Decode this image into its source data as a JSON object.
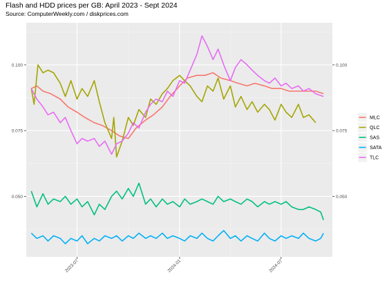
{
  "chart_data": {
    "type": "line",
    "title": "Flash and HDD prices per GB: April 2023 - Sept 2024",
    "subtitle": "Source: ComputerWeekly.com / diskprices.com",
    "xlabel": "",
    "ylabel": "",
    "xlim": [
      "2023-04-01",
      "2024-10-01"
    ],
    "ylim": [
      0.027,
      0.116
    ],
    "grid": true,
    "legend_position": "right",
    "x_ticks": [
      "2023-07",
      "2024-01",
      "2024-07"
    ],
    "y_ticks": [
      0.05,
      0.075,
      0.1
    ],
    "y_tick_labels": [
      "0.050",
      "0.075",
      "0.100"
    ],
    "series": [
      {
        "name": "MLC",
        "color": "#F8766D",
        "points": [
          [
            "2023-04-10",
            0.091
          ],
          [
            "2023-04-20",
            0.092
          ],
          [
            "2023-05-01",
            0.09
          ],
          [
            "2023-05-15",
            0.089
          ],
          [
            "2023-06-01",
            0.087
          ],
          [
            "2023-06-15",
            0.084
          ],
          [
            "2023-07-01",
            0.082
          ],
          [
            "2023-07-15",
            0.08
          ],
          [
            "2023-08-01",
            0.078
          ],
          [
            "2023-08-15",
            0.077
          ],
          [
            "2023-09-01",
            0.075
          ],
          [
            "2023-09-15",
            0.073
          ],
          [
            "2023-10-01",
            0.072
          ],
          [
            "2023-10-15",
            0.076
          ],
          [
            "2023-11-01",
            0.079
          ],
          [
            "2023-11-15",
            0.081
          ],
          [
            "2023-12-01",
            0.084
          ],
          [
            "2023-12-15",
            0.088
          ],
          [
            "2024-01-01",
            0.092
          ],
          [
            "2024-01-15",
            0.095
          ],
          [
            "2024-02-01",
            0.096
          ],
          [
            "2024-02-15",
            0.096
          ],
          [
            "2024-03-01",
            0.097
          ],
          [
            "2024-03-15",
            0.095
          ],
          [
            "2024-04-01",
            0.094
          ],
          [
            "2024-04-15",
            0.093
          ],
          [
            "2024-05-01",
            0.092
          ],
          [
            "2024-05-15",
            0.093
          ],
          [
            "2024-06-01",
            0.092
          ],
          [
            "2024-06-15",
            0.091
          ],
          [
            "2024-07-01",
            0.091
          ],
          [
            "2024-07-15",
            0.09
          ],
          [
            "2024-08-01",
            0.09
          ],
          [
            "2024-08-15",
            0.09
          ],
          [
            "2024-09-01",
            0.09
          ],
          [
            "2024-09-15",
            0.089
          ]
        ]
      },
      {
        "name": "QLC",
        "color": "#A3A500",
        "points": [
          [
            "2023-04-10",
            0.091
          ],
          [
            "2023-04-15",
            0.085
          ],
          [
            "2023-04-22",
            0.1
          ],
          [
            "2023-05-01",
            0.097
          ],
          [
            "2023-05-10",
            0.098
          ],
          [
            "2023-05-20",
            0.097
          ],
          [
            "2023-06-01",
            0.093
          ],
          [
            "2023-06-10",
            0.088
          ],
          [
            "2023-06-20",
            0.094
          ],
          [
            "2023-07-01",
            0.087
          ],
          [
            "2023-07-10",
            0.091
          ],
          [
            "2023-07-20",
            0.088
          ],
          [
            "2023-08-01",
            0.094
          ],
          [
            "2023-08-10",
            0.086
          ],
          [
            "2023-08-20",
            0.078
          ],
          [
            "2023-09-01",
            0.072
          ],
          [
            "2023-09-05",
            0.08
          ],
          [
            "2023-09-10",
            0.065
          ],
          [
            "2023-09-20",
            0.071
          ],
          [
            "2023-10-01",
            0.08
          ],
          [
            "2023-10-10",
            0.077
          ],
          [
            "2023-10-20",
            0.083
          ],
          [
            "2023-11-01",
            0.08
          ],
          [
            "2023-11-10",
            0.087
          ],
          [
            "2023-11-20",
            0.085
          ],
          [
            "2023-12-01",
            0.089
          ],
          [
            "2023-12-10",
            0.091
          ],
          [
            "2023-12-20",
            0.094
          ],
          [
            "2024-01-01",
            0.096
          ],
          [
            "2024-01-10",
            0.094
          ],
          [
            "2024-01-20",
            0.092
          ],
          [
            "2024-02-01",
            0.088
          ],
          [
            "2024-02-10",
            0.086
          ],
          [
            "2024-02-20",
            0.092
          ],
          [
            "2024-03-01",
            0.09
          ],
          [
            "2024-03-10",
            0.095
          ],
          [
            "2024-03-20",
            0.087
          ],
          [
            "2024-04-01",
            0.092
          ],
          [
            "2024-04-10",
            0.084
          ],
          [
            "2024-04-20",
            0.088
          ],
          [
            "2024-05-01",
            0.083
          ],
          [
            "2024-05-10",
            0.086
          ],
          [
            "2024-05-20",
            0.082
          ],
          [
            "2024-06-01",
            0.085
          ],
          [
            "2024-06-10",
            0.083
          ],
          [
            "2024-06-20",
            0.079
          ],
          [
            "2024-07-01",
            0.085
          ],
          [
            "2024-07-10",
            0.082
          ],
          [
            "2024-07-20",
            0.08
          ],
          [
            "2024-08-01",
            0.085
          ],
          [
            "2024-08-10",
            0.08
          ],
          [
            "2024-08-20",
            0.081
          ],
          [
            "2024-09-01",
            0.078
          ]
        ]
      },
      {
        "name": "SAS",
        "color": "#00BF7D",
        "points": [
          [
            "2023-04-10",
            0.052
          ],
          [
            "2023-04-20",
            0.046
          ],
          [
            "2023-05-01",
            0.051
          ],
          [
            "2023-05-10",
            0.047
          ],
          [
            "2023-05-20",
            0.049
          ],
          [
            "2023-06-01",
            0.048
          ],
          [
            "2023-06-10",
            0.05
          ],
          [
            "2023-06-20",
            0.047
          ],
          [
            "2023-07-01",
            0.049
          ],
          [
            "2023-07-10",
            0.046
          ],
          [
            "2023-07-20",
            0.048
          ],
          [
            "2023-08-01",
            0.043
          ],
          [
            "2023-08-10",
            0.047
          ],
          [
            "2023-08-20",
            0.045
          ],
          [
            "2023-09-01",
            0.05
          ],
          [
            "2023-09-10",
            0.052
          ],
          [
            "2023-09-20",
            0.049
          ],
          [
            "2023-10-01",
            0.053
          ],
          [
            "2023-10-10",
            0.05
          ],
          [
            "2023-10-20",
            0.055
          ],
          [
            "2023-11-01",
            0.047
          ],
          [
            "2023-11-10",
            0.049
          ],
          [
            "2023-11-20",
            0.046
          ],
          [
            "2023-12-01",
            0.049
          ],
          [
            "2023-12-10",
            0.047
          ],
          [
            "2023-12-20",
            0.048
          ],
          [
            "2024-01-01",
            0.046
          ],
          [
            "2024-01-10",
            0.049
          ],
          [
            "2024-01-20",
            0.047
          ],
          [
            "2024-02-01",
            0.048
          ],
          [
            "2024-02-10",
            0.049
          ],
          [
            "2024-02-20",
            0.048
          ],
          [
            "2024-03-01",
            0.047
          ],
          [
            "2024-03-10",
            0.05
          ],
          [
            "2024-03-20",
            0.048
          ],
          [
            "2024-04-01",
            0.049
          ],
          [
            "2024-04-10",
            0.048
          ],
          [
            "2024-04-20",
            0.047
          ],
          [
            "2024-05-01",
            0.049
          ],
          [
            "2024-05-10",
            0.048
          ],
          [
            "2024-05-20",
            0.046
          ],
          [
            "2024-06-01",
            0.048
          ],
          [
            "2024-06-10",
            0.047
          ],
          [
            "2024-06-20",
            0.048
          ],
          [
            "2024-07-01",
            0.047
          ],
          [
            "2024-07-10",
            0.048
          ],
          [
            "2024-07-20",
            0.046
          ],
          [
            "2024-08-01",
            0.045
          ],
          [
            "2024-08-10",
            0.045
          ],
          [
            "2024-08-20",
            0.046
          ],
          [
            "2024-09-01",
            0.045
          ],
          [
            "2024-09-10",
            0.044
          ],
          [
            "2024-09-15",
            0.041
          ]
        ]
      },
      {
        "name": "SATA",
        "color": "#00B0F6",
        "points": [
          [
            "2023-04-10",
            0.036
          ],
          [
            "2023-04-20",
            0.034
          ],
          [
            "2023-05-01",
            0.035
          ],
          [
            "2023-05-10",
            0.033
          ],
          [
            "2023-05-20",
            0.035
          ],
          [
            "2023-06-01",
            0.034
          ],
          [
            "2023-06-10",
            0.032
          ],
          [
            "2023-06-20",
            0.034
          ],
          [
            "2023-07-01",
            0.033
          ],
          [
            "2023-07-10",
            0.035
          ],
          [
            "2023-07-20",
            0.032
          ],
          [
            "2023-08-01",
            0.034
          ],
          [
            "2023-08-10",
            0.033
          ],
          [
            "2023-08-20",
            0.035
          ],
          [
            "2023-09-01",
            0.034
          ],
          [
            "2023-09-10",
            0.035
          ],
          [
            "2023-09-20",
            0.033
          ],
          [
            "2023-10-01",
            0.035
          ],
          [
            "2023-10-10",
            0.034
          ],
          [
            "2023-10-20",
            0.036
          ],
          [
            "2023-11-01",
            0.034
          ],
          [
            "2023-11-10",
            0.035
          ],
          [
            "2023-11-20",
            0.034
          ],
          [
            "2023-12-01",
            0.036
          ],
          [
            "2023-12-10",
            0.034
          ],
          [
            "2023-12-20",
            0.035
          ],
          [
            "2024-01-01",
            0.034
          ],
          [
            "2024-01-10",
            0.033
          ],
          [
            "2024-01-20",
            0.035
          ],
          [
            "2024-02-01",
            0.034
          ],
          [
            "2024-02-10",
            0.036
          ],
          [
            "2024-02-20",
            0.034
          ],
          [
            "2024-03-01",
            0.033
          ],
          [
            "2024-03-10",
            0.035
          ],
          [
            "2024-03-20",
            0.037
          ],
          [
            "2024-04-01",
            0.034
          ],
          [
            "2024-04-10",
            0.035
          ],
          [
            "2024-04-20",
            0.033
          ],
          [
            "2024-05-01",
            0.035
          ],
          [
            "2024-05-10",
            0.034
          ],
          [
            "2024-05-20",
            0.033
          ],
          [
            "2024-06-01",
            0.036
          ],
          [
            "2024-06-10",
            0.034
          ],
          [
            "2024-06-20",
            0.033
          ],
          [
            "2024-07-01",
            0.035
          ],
          [
            "2024-07-10",
            0.034
          ],
          [
            "2024-07-20",
            0.035
          ],
          [
            "2024-08-01",
            0.034
          ],
          [
            "2024-08-10",
            0.036
          ],
          [
            "2024-08-20",
            0.034
          ],
          [
            "2024-09-01",
            0.033
          ],
          [
            "2024-09-10",
            0.034
          ],
          [
            "2024-09-15",
            0.036
          ]
        ]
      },
      {
        "name": "TLC",
        "color": "#E76BF3",
        "points": [
          [
            "2023-04-10",
            0.091
          ],
          [
            "2023-04-20",
            0.087
          ],
          [
            "2023-05-01",
            0.084
          ],
          [
            "2023-05-10",
            0.081
          ],
          [
            "2023-05-20",
            0.082
          ],
          [
            "2023-06-01",
            0.078
          ],
          [
            "2023-06-10",
            0.08
          ],
          [
            "2023-06-20",
            0.075
          ],
          [
            "2023-07-01",
            0.07
          ],
          [
            "2023-07-10",
            0.072
          ],
          [
            "2023-07-20",
            0.071
          ],
          [
            "2023-08-01",
            0.072
          ],
          [
            "2023-08-10",
            0.069
          ],
          [
            "2023-08-20",
            0.071
          ],
          [
            "2023-09-01",
            0.066
          ],
          [
            "2023-09-10",
            0.07
          ],
          [
            "2023-09-20",
            0.071
          ],
          [
            "2023-10-01",
            0.074
          ],
          [
            "2023-10-10",
            0.078
          ],
          [
            "2023-10-20",
            0.076
          ],
          [
            "2023-11-01",
            0.082
          ],
          [
            "2023-11-10",
            0.085
          ],
          [
            "2023-11-20",
            0.087
          ],
          [
            "2023-12-01",
            0.086
          ],
          [
            "2023-12-10",
            0.09
          ],
          [
            "2023-12-20",
            0.088
          ],
          [
            "2024-01-01",
            0.094
          ],
          [
            "2024-01-10",
            0.093
          ],
          [
            "2024-01-20",
            0.098
          ],
          [
            "2024-02-01",
            0.104
          ],
          [
            "2024-02-10",
            0.111
          ],
          [
            "2024-02-20",
            0.107
          ],
          [
            "2024-03-01",
            0.102
          ],
          [
            "2024-03-10",
            0.106
          ],
          [
            "2024-03-20",
            0.1
          ],
          [
            "2024-04-01",
            0.094
          ],
          [
            "2024-04-10",
            0.099
          ],
          [
            "2024-04-20",
            0.102
          ],
          [
            "2024-05-01",
            0.1
          ],
          [
            "2024-05-10",
            0.098
          ],
          [
            "2024-05-20",
            0.096
          ],
          [
            "2024-06-01",
            0.094
          ],
          [
            "2024-06-10",
            0.093
          ],
          [
            "2024-06-20",
            0.095
          ],
          [
            "2024-07-01",
            0.092
          ],
          [
            "2024-07-10",
            0.093
          ],
          [
            "2024-07-20",
            0.091
          ],
          [
            "2024-08-01",
            0.092
          ],
          [
            "2024-08-10",
            0.09
          ],
          [
            "2024-08-20",
            0.091
          ],
          [
            "2024-09-01",
            0.089
          ],
          [
            "2024-09-15",
            0.088
          ]
        ]
      }
    ]
  }
}
